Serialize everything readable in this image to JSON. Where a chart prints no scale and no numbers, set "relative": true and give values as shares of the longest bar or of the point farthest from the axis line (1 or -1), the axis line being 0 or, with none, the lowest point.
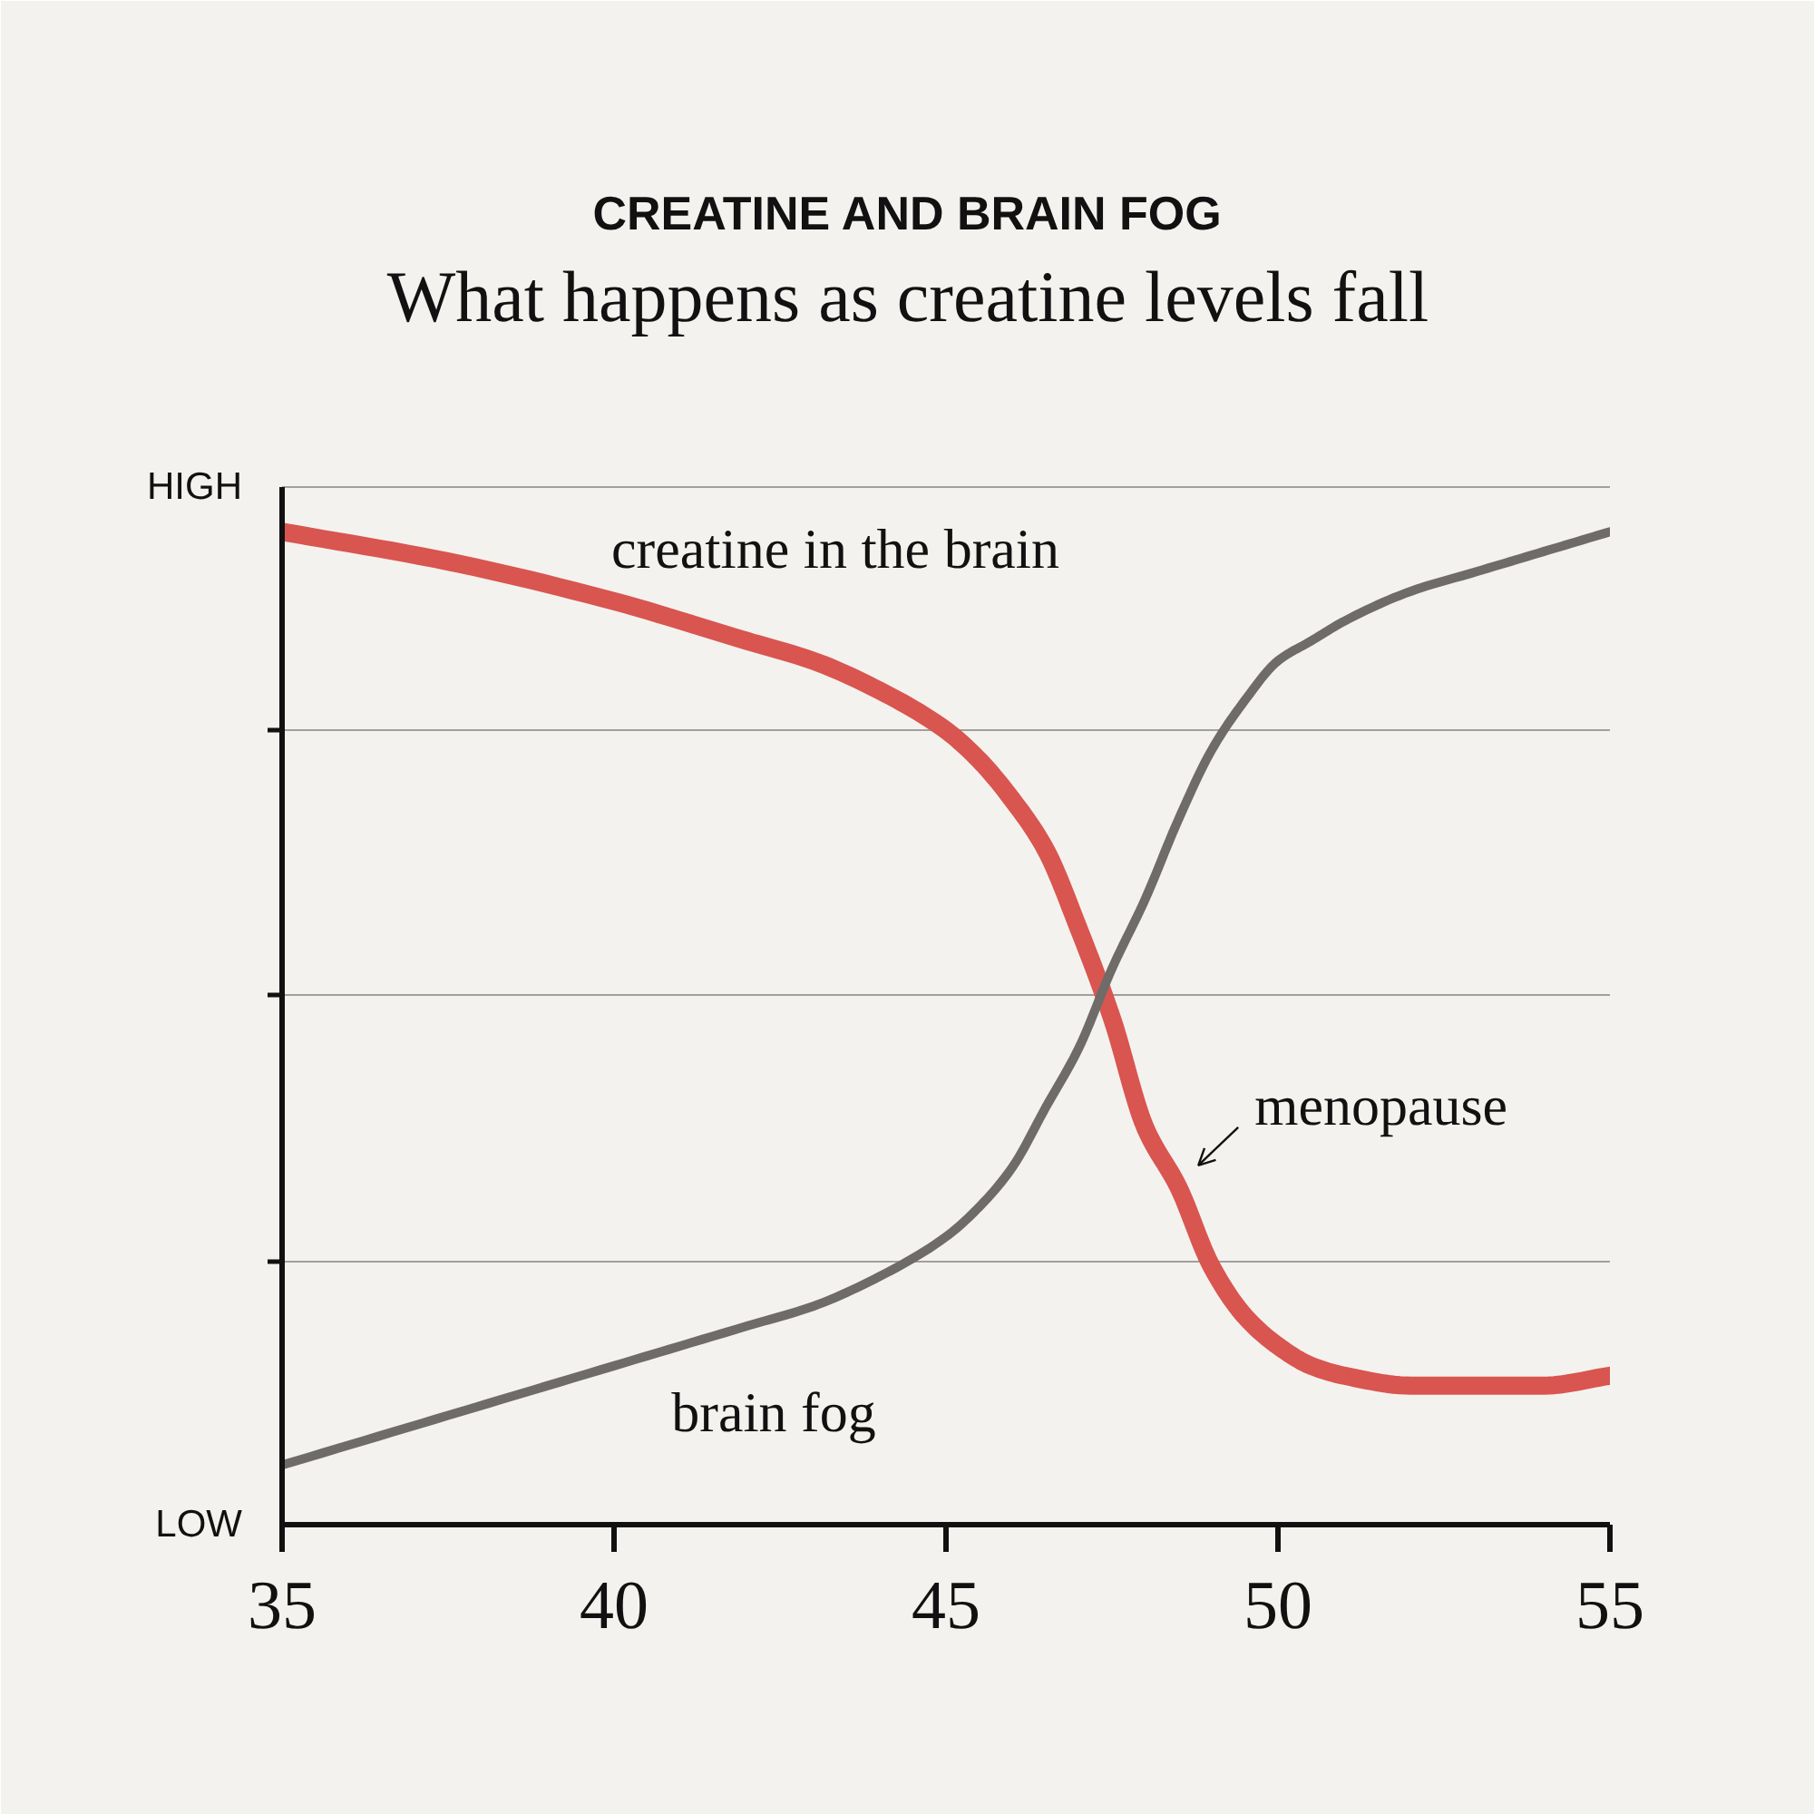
{
  "chart_data": {
    "type": "line",
    "title": "CREATINE AND BRAIN FOG",
    "subtitle": "What happens as creatine levels fall",
    "x": [
      35,
      37.5,
      40,
      42,
      43,
      44,
      45,
      45.5,
      46,
      46.5,
      47,
      47.5,
      48,
      48.5,
      49,
      49.5,
      50,
      50.5,
      51,
      52,
      53,
      54,
      55
    ],
    "series": [
      {
        "name": "creatine in the brain",
        "color": "#d95550",
        "values": [
          1.0,
          0.97,
          0.93,
          0.89,
          0.87,
          0.84,
          0.8,
          0.77,
          0.73,
          0.68,
          0.6,
          0.51,
          0.4,
          0.34,
          0.26,
          0.21,
          0.18,
          0.16,
          0.15,
          0.14,
          0.14,
          0.14,
          0.15
        ]
      },
      {
        "name": "brain fog",
        "color": "#6e6b69",
        "values": [
          0.06,
          0.11,
          0.16,
          0.2,
          0.22,
          0.25,
          0.29,
          0.32,
          0.36,
          0.42,
          0.48,
          0.56,
          0.63,
          0.71,
          0.78,
          0.83,
          0.87,
          0.89,
          0.91,
          0.94,
          0.96,
          0.98,
          1.0
        ]
      }
    ],
    "relative": true,
    "xlim": [
      35,
      55
    ],
    "xticks": [
      35,
      40,
      45,
      50,
      55
    ],
    "grid": "y",
    "line_style": "solid",
    "annotations": [
      "HIGH",
      "LOW",
      {
        "text": "menopause",
        "x": 48.5,
        "y": 0.34
      }
    ]
  }
}
